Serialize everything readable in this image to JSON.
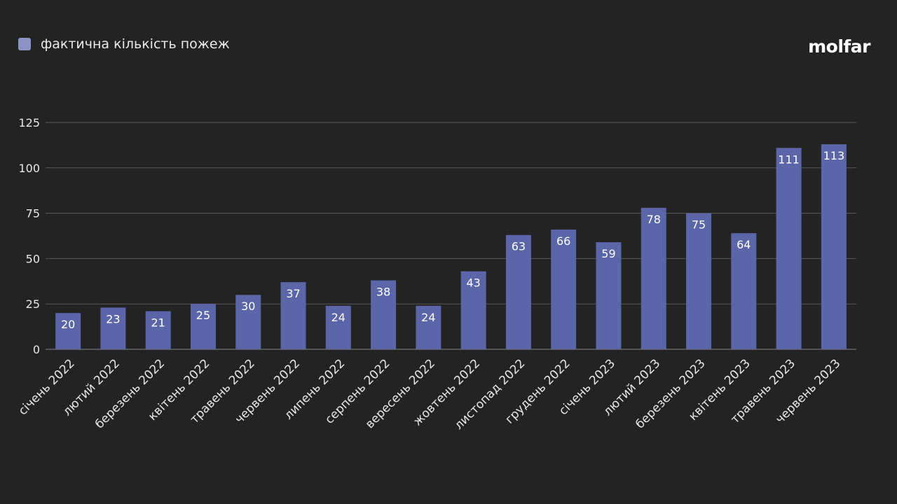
{
  "brand": {
    "logo_text": "molfar"
  },
  "colors": {
    "bar": "#5a66a8",
    "legend": "#8a93c4",
    "grid": "#5a5a5a",
    "text": "#e8e8e8"
  },
  "chart_data": {
    "type": "bar",
    "title": "",
    "xlabel": "",
    "ylabel": "",
    "legend": {
      "position": "top-left",
      "entries": [
        "фактична кількість пожеж"
      ]
    },
    "grid": true,
    "ylim": [
      0,
      125
    ],
    "yticks": [
      0,
      25,
      50,
      75,
      100,
      125
    ],
    "categories": [
      "січень 2022",
      "лютий 2022",
      "березень 2022",
      "квітень 2022",
      "травень 2022",
      "червень 2022",
      "липень 2022",
      "серпень 2022",
      "вересень 2022",
      "жовтень 2022",
      "листопад 2022",
      "грудень 2022",
      "січень 2023",
      "лютий 2023",
      "березень 2023",
      "квітень 2023",
      "травень 2023",
      "червень 2023"
    ],
    "series": [
      {
        "name": "фактична кількість пожеж",
        "values": [
          20,
          23,
          21,
          25,
          30,
          37,
          24,
          38,
          24,
          43,
          63,
          66,
          59,
          78,
          75,
          64,
          111,
          113
        ]
      }
    ]
  }
}
